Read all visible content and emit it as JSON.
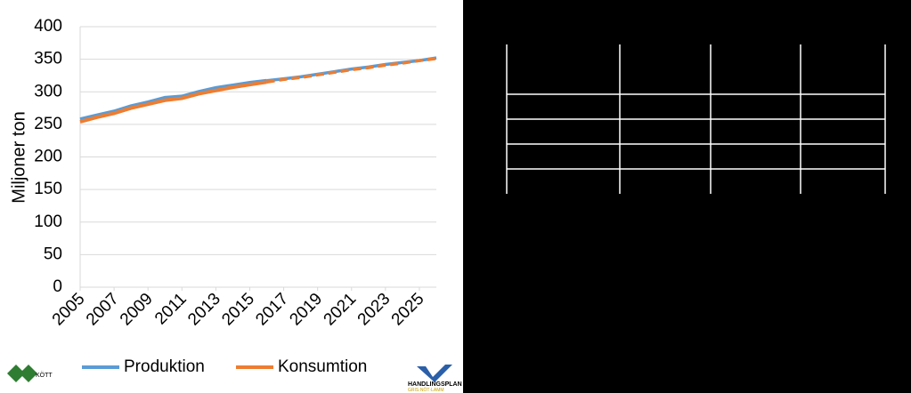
{
  "chart_data": {
    "type": "line",
    "y_label": "Miljoner ton",
    "x": [
      2005,
      2006,
      2007,
      2008,
      2009,
      2010,
      2011,
      2012,
      2013,
      2014,
      2015,
      2016,
      2017,
      2018,
      2019,
      2020,
      2021,
      2022,
      2023,
      2024,
      2025,
      2026
    ],
    "xlim": [
      2005,
      2026
    ],
    "xticks": [
      2005,
      2007,
      2009,
      2011,
      2013,
      2015,
      2017,
      2019,
      2021,
      2023,
      2025
    ],
    "ylim": [
      0,
      400
    ],
    "yticks": [
      0,
      50,
      100,
      150,
      200,
      250,
      300,
      350,
      400
    ],
    "grid": true,
    "legend": "bottom",
    "series": [
      {
        "name": "Produktion",
        "color": "#5b9bd5",
        "values": [
          258,
          264,
          270,
          278,
          284,
          291,
          293,
          300,
          306,
          310,
          314,
          317,
          null,
          null,
          null,
          null,
          null,
          null,
          null,
          null,
          null,
          null
        ],
        "forecast": [
          null,
          null,
          null,
          null,
          null,
          null,
          null,
          null,
          null,
          null,
          null,
          317,
          320,
          323,
          327,
          331,
          335,
          338,
          342,
          345,
          348,
          352
        ]
      },
      {
        "name": "Konsumtion",
        "color": "#ed7d31",
        "values": [
          254,
          261,
          267,
          275,
          281,
          287,
          290,
          297,
          302,
          307,
          311,
          315,
          null,
          null,
          null,
          null,
          null,
          null,
          null,
          null,
          null,
          null
        ],
        "forecast": [
          null,
          null,
          null,
          null,
          null,
          null,
          null,
          null,
          null,
          null,
          null,
          315,
          319,
          322,
          326,
          330,
          334,
          337,
          341,
          344,
          348,
          351
        ]
      }
    ]
  },
  "logos": {
    "left": "KÖTT",
    "right_title": "HANDLINGSPLAN",
    "right_sub": "GRIS·NÖT·LAMM"
  }
}
